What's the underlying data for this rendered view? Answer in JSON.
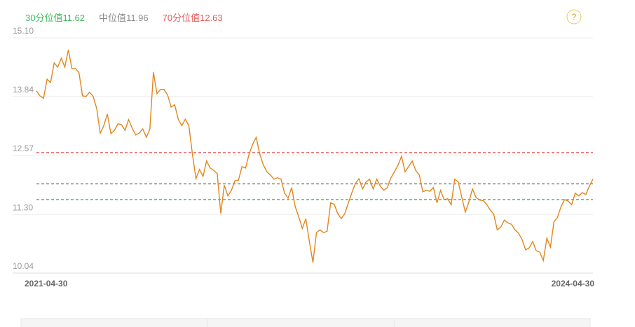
{
  "chart_data": {
    "type": "line",
    "reference_lines": [
      {
        "name": "30分位值",
        "value": 11.62,
        "color": "#3dba5c"
      },
      {
        "name": "中位值",
        "value": 11.96,
        "color": "#8c8c8c"
      },
      {
        "name": "70分位值",
        "value": 12.63,
        "color": "#e65a5a"
      }
    ],
    "categories": [
      "2021-04-30",
      null,
      null,
      null,
      null,
      null,
      null,
      null,
      null,
      null,
      null,
      null,
      null,
      null,
      null,
      null,
      null,
      null,
      null,
      null,
      null,
      null,
      null,
      null,
      null,
      null,
      null,
      null,
      null,
      null,
      null,
      null,
      null,
      null,
      null,
      null,
      null,
      null,
      null,
      null,
      null,
      null,
      null,
      null,
      null,
      null,
      null,
      null,
      null,
      null,
      null,
      null,
      null,
      null,
      null,
      null,
      null,
      null,
      null,
      null,
      null,
      null,
      null,
      null,
      null,
      null,
      null,
      null,
      null,
      null,
      null,
      null,
      null,
      null,
      null,
      null,
      null,
      null,
      null,
      null,
      null,
      null,
      null,
      null,
      null,
      null,
      null,
      null,
      null,
      null,
      null,
      null,
      null,
      null,
      null,
      null,
      null,
      null,
      null,
      null,
      null,
      null,
      null,
      null,
      null,
      null,
      null,
      null,
      null,
      null,
      null,
      null,
      null,
      null,
      null,
      null,
      null,
      null,
      null,
      null,
      null,
      null,
      null,
      null,
      null,
      null,
      null,
      null,
      null,
      null,
      null,
      null,
      null,
      null,
      null,
      null,
      null,
      null,
      null,
      null,
      null,
      null,
      null,
      null,
      null,
      null,
      null,
      null,
      null,
      null,
      null,
      null,
      null,
      null,
      null,
      null,
      null,
      "2024-04-30"
    ],
    "values": [
      13.96,
      13.85,
      13.8,
      14.21,
      14.14,
      14.56,
      14.47,
      14.66,
      14.47,
      14.84,
      14.44,
      14.44,
      14.35,
      13.85,
      13.84,
      13.93,
      13.84,
      13.58,
      13.05,
      13.21,
      13.46,
      13.04,
      13.11,
      13.25,
      13.23,
      13.11,
      13.34,
      13.16,
      13.01,
      13.05,
      13.14,
      12.96,
      13.14,
      14.36,
      13.9,
      13.99,
      13.99,
      13.87,
      13.61,
      13.66,
      13.35,
      13.21,
      13.35,
      13.21,
      12.6,
      12.07,
      12.27,
      12.12,
      12.45,
      12.3,
      12.25,
      12.18,
      11.32,
      11.93,
      11.7,
      11.82,
      12.03,
      12.04,
      12.33,
      12.3,
      12.6,
      12.81,
      12.96,
      12.6,
      12.37,
      12.22,
      12.15,
      12.06,
      12.09,
      12.06,
      11.76,
      11.65,
      11.88,
      11.47,
      11.25,
      11.0,
      11.21,
      10.72,
      10.27,
      10.91,
      10.97,
      10.91,
      10.94,
      11.55,
      11.52,
      11.32,
      11.21,
      11.32,
      11.55,
      11.77,
      11.97,
      12.07,
      11.85,
      12.0,
      12.06,
      11.85,
      12.06,
      11.91,
      11.82,
      11.88,
      12.09,
      12.22,
      12.36,
      12.55,
      12.22,
      12.33,
      12.45,
      12.25,
      12.15,
      11.79,
      11.82,
      11.8,
      11.88,
      11.55,
      11.82,
      11.62,
      11.64,
      11.51,
      12.06,
      12.0,
      11.67,
      11.35,
      11.57,
      11.85,
      11.67,
      11.61,
      11.6,
      11.52,
      11.4,
      11.31,
      10.97,
      11.03,
      11.18,
      11.12,
      11.09,
      10.97,
      10.9,
      10.76,
      10.54,
      10.58,
      10.72,
      10.52,
      10.49,
      10.31,
      10.79,
      10.6,
      11.14,
      11.24,
      11.47,
      11.62,
      11.59,
      11.51,
      11.76,
      11.7,
      11.77,
      11.73,
      11.91,
      12.06
    ],
    "color": "#e3861c",
    "ylim": [
      10.04,
      15.1
    ],
    "yticks": [
      {
        "value": 15.1,
        "label": "15.10"
      },
      13.84,
      12.57,
      {
        "value": 11.3,
        "label": "11.30"
      },
      10.04
    ],
    "grid": true
  }
}
